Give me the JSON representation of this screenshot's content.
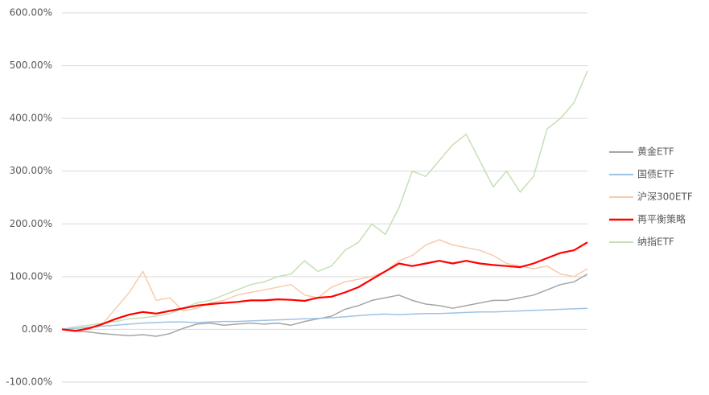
{
  "chart_data": {
    "type": "line",
    "categories": [
      null,
      null,
      null,
      null,
      null,
      null,
      null,
      null,
      null,
      null,
      null,
      null,
      null,
      null,
      null,
      null,
      null,
      null,
      null,
      null,
      null,
      null,
      null,
      null,
      null,
      null,
      null,
      null,
      null,
      null,
      null,
      null,
      null,
      null,
      null,
      null,
      null,
      null,
      null,
      null
    ],
    "series": [
      {
        "name": "黄金ETF",
        "color": "#a5a5a5",
        "values": [
          0,
          -3,
          -5,
          -8,
          -10,
          -12,
          -10,
          -13,
          -8,
          2,
          10,
          12,
          8,
          10,
          12,
          10,
          12,
          8,
          15,
          20,
          25,
          38,
          45,
          55,
          60,
          65,
          55,
          48,
          45,
          40,
          45,
          50,
          55,
          55,
          60,
          65,
          75,
          85,
          90,
          105
        ]
      },
      {
        "name": "国债ETF",
        "color": "#9dc3e6",
        "values": [
          0,
          2,
          4,
          6,
          8,
          10,
          12,
          13,
          14,
          14,
          13,
          14,
          15,
          15,
          16,
          17,
          18,
          19,
          20,
          21,
          22,
          24,
          26,
          28,
          29,
          28,
          29,
          30,
          30,
          31,
          32,
          33,
          33,
          34,
          35,
          36,
          37,
          38,
          39,
          40
        ]
      },
      {
        "name": "沪深300ETF",
        "color": "#f8cbad",
        "values": [
          0,
          -3,
          0,
          10,
          40,
          70,
          110,
          55,
          60,
          35,
          40,
          50,
          55,
          65,
          70,
          75,
          80,
          85,
          65,
          60,
          80,
          90,
          95,
          100,
          110,
          130,
          140,
          160,
          170,
          160,
          155,
          150,
          140,
          125,
          120,
          115,
          120,
          105,
          100,
          115
        ]
      },
      {
        "name": "再平衡策略",
        "color": "#ff0000",
        "values": [
          0,
          -3,
          2,
          10,
          20,
          28,
          33,
          30,
          35,
          40,
          45,
          48,
          50,
          52,
          55,
          55,
          57,
          56,
          54,
          60,
          62,
          70,
          80,
          95,
          110,
          125,
          120,
          125,
          130,
          125,
          130,
          125,
          122,
          120,
          118,
          125,
          135,
          145,
          150,
          165
        ]
      },
      {
        "name": "纳指ETF",
        "color": "#c5e0b4",
        "values": [
          0,
          5,
          8,
          12,
          15,
          20,
          22,
          25,
          30,
          40,
          50,
          55,
          65,
          75,
          85,
          90,
          100,
          105,
          130,
          110,
          120,
          150,
          165,
          200,
          180,
          230,
          300,
          290,
          320,
          350,
          370,
          320,
          270,
          300,
          260,
          290,
          380,
          400,
          430,
          490
        ]
      }
    ],
    "ylim": [
      -100,
      600
    ],
    "yticks": [
      {
        "value": -100,
        "label": "-100.00%"
      },
      {
        "value": 0,
        "label": "0.00%"
      },
      {
        "value": 100,
        "label": "100.00%"
      },
      {
        "value": 200,
        "label": "200.00%"
      },
      {
        "value": 300,
        "label": "300.00%"
      },
      {
        "value": 400,
        "label": "400.00%"
      },
      {
        "value": 500,
        "label": "500.00%"
      },
      {
        "value": 600,
        "label": "600.00%"
      }
    ],
    "grid": true,
    "legend": "right"
  }
}
